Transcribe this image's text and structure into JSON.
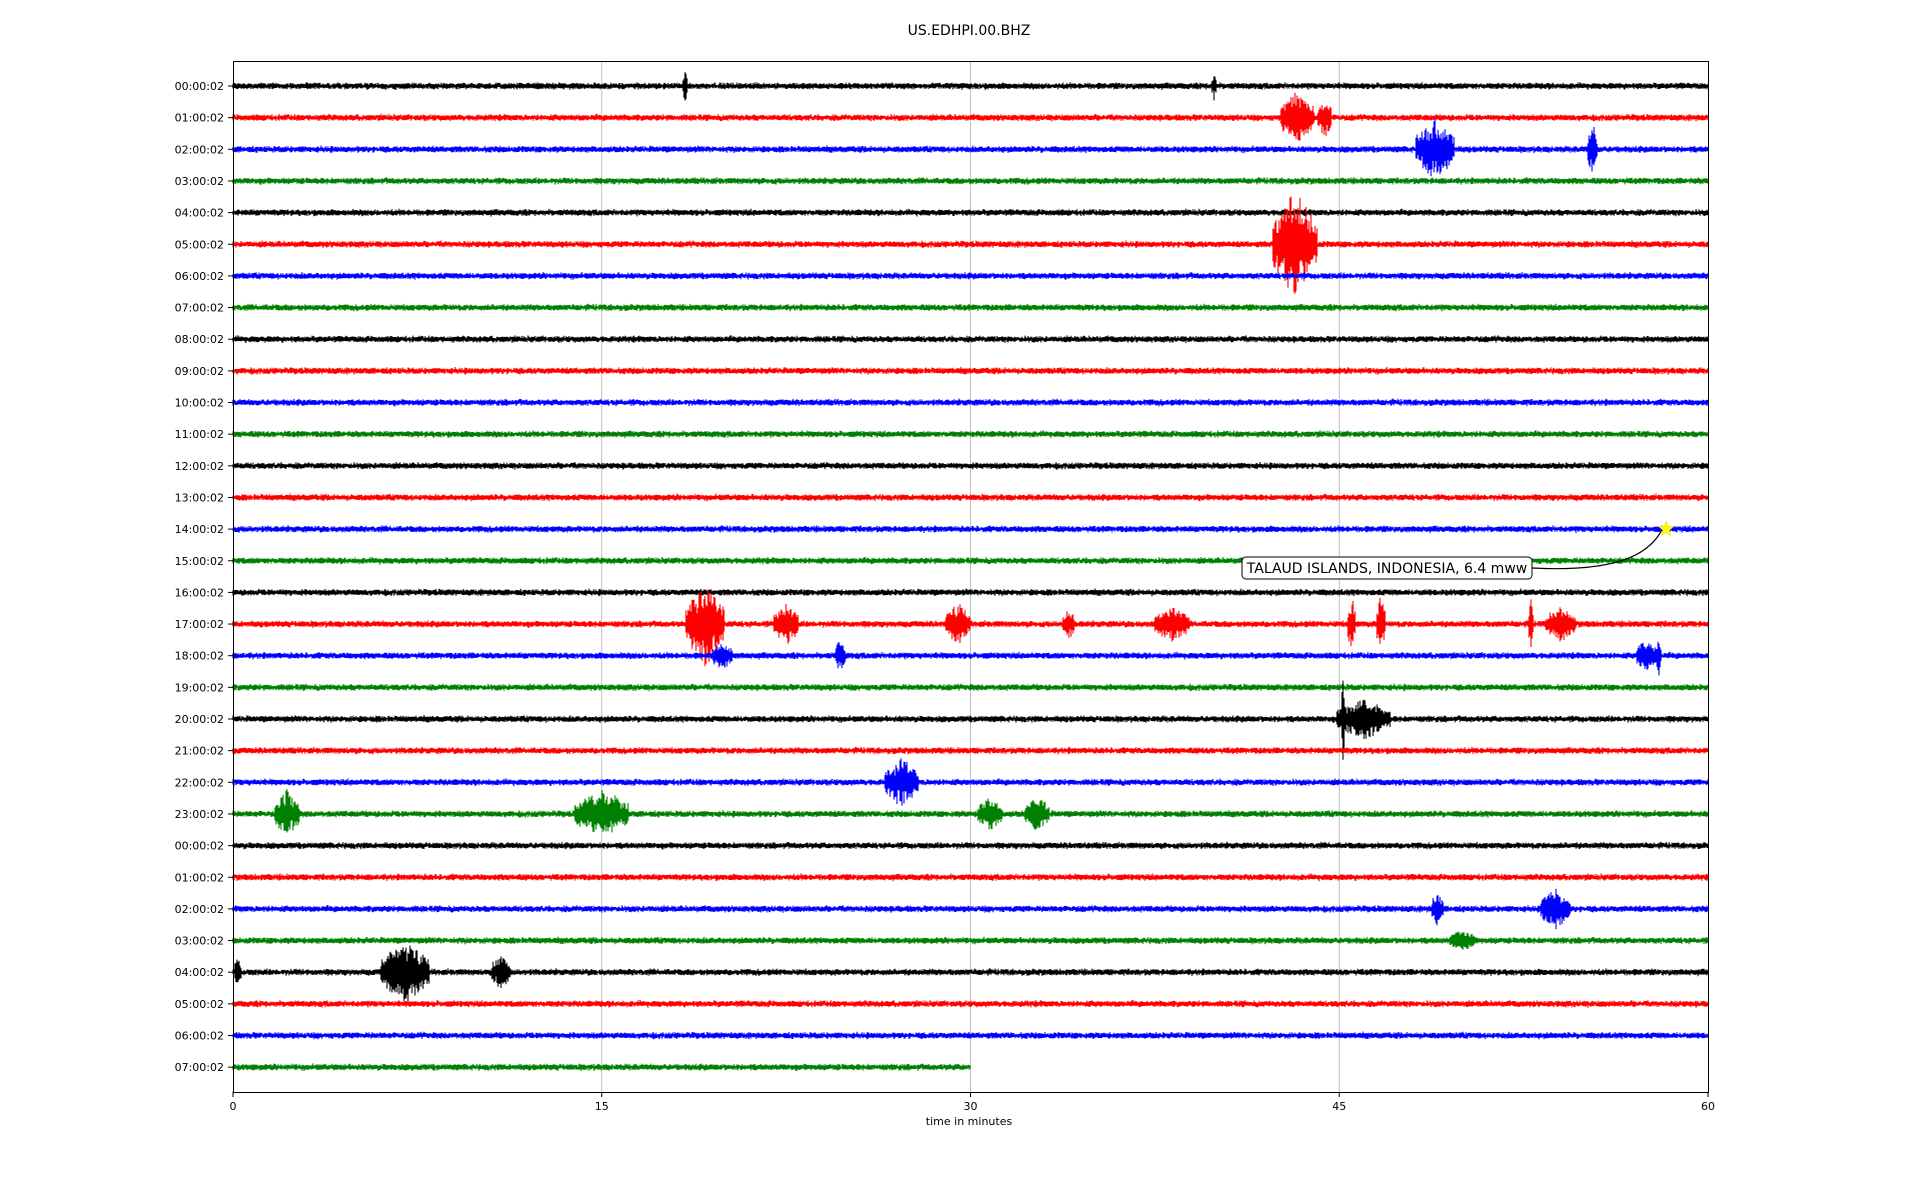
{
  "chart_data": {
    "type": "line",
    "title": "US.EDHPI.00.BHZ",
    "xlabel": "time in minutes",
    "ylabel": "",
    "xlim": [
      0,
      60
    ],
    "x_ticks": [
      "0",
      "15",
      "30",
      "45",
      "60"
    ],
    "grid": "vertical at 15-minute ticks",
    "row_colors": [
      "#000000",
      "#ff0000",
      "#0000ff",
      "#008000"
    ],
    "row_labels": [
      "00:00:02",
      "01:00:02",
      "02:00:02",
      "03:00:02",
      "04:00:02",
      "05:00:02",
      "06:00:02",
      "07:00:02",
      "08:00:02",
      "09:00:02",
      "10:00:02",
      "11:00:02",
      "12:00:02",
      "13:00:02",
      "14:00:02",
      "15:00:02",
      "16:00:02",
      "17:00:02",
      "18:00:02",
      "19:00:02",
      "20:00:02",
      "21:00:02",
      "22:00:02",
      "23:00:02",
      "00:00:02",
      "01:00:02",
      "02:00:02",
      "03:00:02",
      "04:00:02",
      "05:00:02",
      "06:00:02",
      "07:00:02"
    ],
    "last_row_end_minute": 30,
    "bursts": [
      {
        "row": 0,
        "minute": 18.4,
        "amp": 0.5,
        "dur": 0.2
      },
      {
        "row": 0,
        "minute": 39.9,
        "amp": 0.4,
        "dur": 0.2
      },
      {
        "row": 1,
        "minute": 43.3,
        "amp": 0.8,
        "dur": 1.4
      },
      {
        "row": 1,
        "minute": 44.4,
        "amp": 0.6,
        "dur": 0.6
      },
      {
        "row": 2,
        "minute": 48.9,
        "amp": 0.9,
        "dur": 1.6
      },
      {
        "row": 2,
        "minute": 55.3,
        "amp": 0.8,
        "dur": 0.4
      },
      {
        "row": 5,
        "minute": 43.2,
        "amp": 1.7,
        "dur": 1.8
      },
      {
        "row": 17,
        "minute": 19.2,
        "amp": 1.3,
        "dur": 1.6
      },
      {
        "row": 17,
        "minute": 22.5,
        "amp": 0.6,
        "dur": 1.0
      },
      {
        "row": 17,
        "minute": 29.5,
        "amp": 0.6,
        "dur": 1.0
      },
      {
        "row": 17,
        "minute": 34.0,
        "amp": 0.4,
        "dur": 0.5
      },
      {
        "row": 17,
        "minute": 38.2,
        "amp": 0.5,
        "dur": 1.4
      },
      {
        "row": 17,
        "minute": 45.5,
        "amp": 0.9,
        "dur": 0.3
      },
      {
        "row": 17,
        "minute": 46.7,
        "amp": 0.9,
        "dur": 0.4
      },
      {
        "row": 17,
        "minute": 52.8,
        "amp": 0.9,
        "dur": 0.2
      },
      {
        "row": 17,
        "minute": 54.0,
        "amp": 0.5,
        "dur": 1.2
      },
      {
        "row": 18,
        "minute": 19.9,
        "amp": 0.4,
        "dur": 0.8
      },
      {
        "row": 18,
        "minute": 24.7,
        "amp": 0.5,
        "dur": 0.4
      },
      {
        "row": 18,
        "minute": 57.5,
        "amp": 0.5,
        "dur": 0.8
      },
      {
        "row": 18,
        "minute": 58.0,
        "amp": 0.6,
        "dur": 0.2
      },
      {
        "row": 20,
        "minute": 46.0,
        "amp": 0.6,
        "dur": 2.2
      },
      {
        "row": 20,
        "minute": 45.15,
        "amp": 1.6,
        "dur": 0.15
      },
      {
        "row": 22,
        "minute": 27.2,
        "amp": 0.7,
        "dur": 1.4
      },
      {
        "row": 23,
        "minute": 2.2,
        "amp": 0.7,
        "dur": 1.0
      },
      {
        "row": 23,
        "minute": 15.0,
        "amp": 0.7,
        "dur": 2.2
      },
      {
        "row": 23,
        "minute": 30.8,
        "amp": 0.5,
        "dur": 1.0
      },
      {
        "row": 23,
        "minute": 32.7,
        "amp": 0.5,
        "dur": 1.0
      },
      {
        "row": 26,
        "minute": 49.0,
        "amp": 0.5,
        "dur": 0.5
      },
      {
        "row": 26,
        "minute": 53.8,
        "amp": 0.6,
        "dur": 1.2
      },
      {
        "row": 27,
        "minute": 50.0,
        "amp": 0.3,
        "dur": 1.0
      },
      {
        "row": 28,
        "minute": 0.2,
        "amp": 0.4,
        "dur": 0.3
      },
      {
        "row": 28,
        "minute": 7.0,
        "amp": 0.9,
        "dur": 2.0
      },
      {
        "row": 28,
        "minute": 10.9,
        "amp": 0.5,
        "dur": 0.8
      }
    ],
    "annotations": [
      {
        "text": "TALAUD ISLANDS, INDONESIA, 6.4 mww",
        "row": 14,
        "minute": 58.3,
        "marker": "star",
        "marker_color": "#ffff00"
      }
    ]
  }
}
